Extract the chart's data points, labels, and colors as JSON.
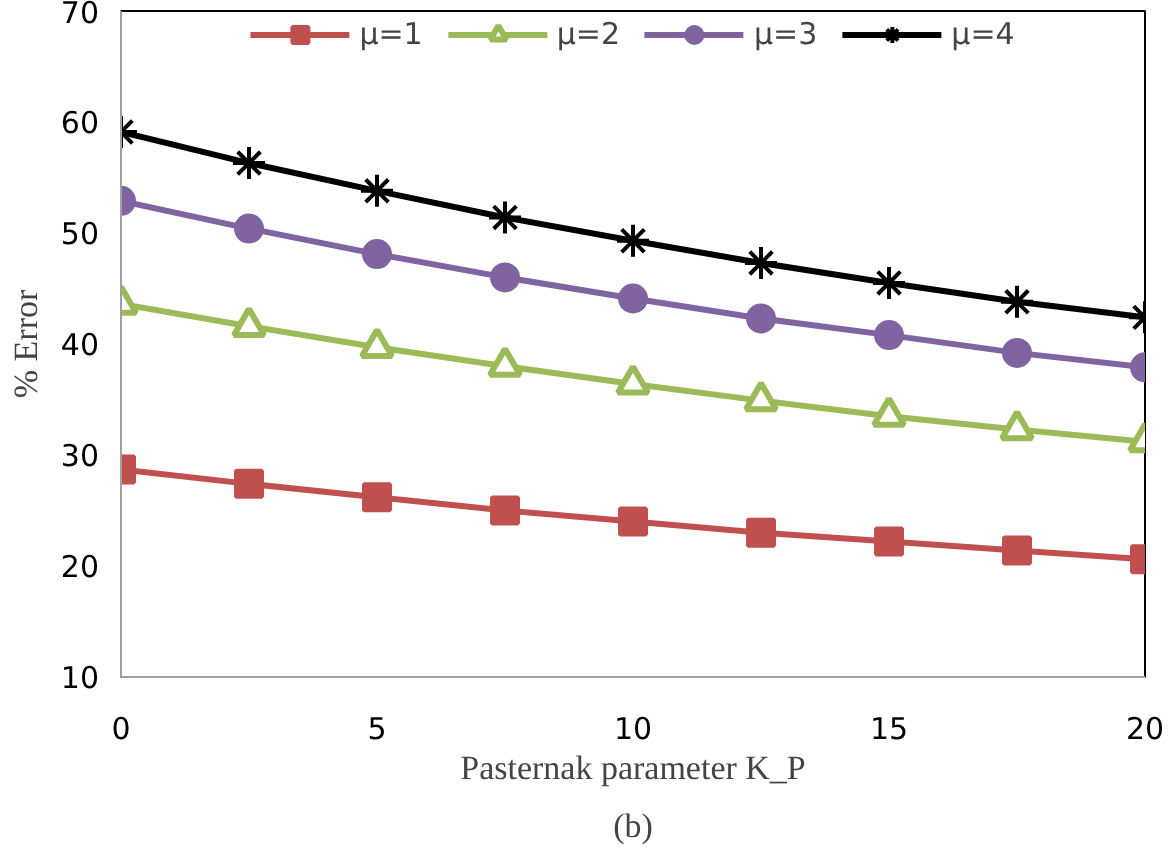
{
  "chart_data": {
    "type": "line",
    "xlabel": "Pasternak parameter K_P",
    "ylabel": "% Error",
    "annotations": [
      "(b)"
    ],
    "x": [
      0,
      2.5,
      5,
      7.5,
      10,
      12.5,
      15,
      17.5,
      20
    ],
    "series": [
      {
        "name": "μ=1",
        "color": "#c0504d",
        "marker": "square",
        "values": [
          28.7,
          27.4,
          26.2,
          25.0,
          24.0,
          23.0,
          22.2,
          21.4,
          20.6
        ]
      },
      {
        "name": "μ=2",
        "color": "#9bbb59",
        "marker": "triangle",
        "values": [
          43.6,
          41.6,
          39.7,
          38.0,
          36.4,
          34.9,
          33.5,
          32.3,
          31.2
        ]
      },
      {
        "name": "μ=3",
        "color": "#8064a2",
        "marker": "circle",
        "values": [
          52.9,
          50.4,
          48.1,
          46.0,
          44.1,
          42.3,
          40.8,
          39.2,
          37.9
        ]
      },
      {
        "name": "μ=4",
        "color": "#000000",
        "marker": "cross",
        "values": [
          59.1,
          56.3,
          53.8,
          51.4,
          49.3,
          47.3,
          45.5,
          43.8,
          42.4
        ]
      }
    ],
    "xlim": [
      0,
      20
    ],
    "xticks": [
      0,
      5,
      10,
      15,
      20
    ],
    "ylim": [
      10,
      70
    ],
    "yticks": [
      10,
      20,
      30,
      40,
      50,
      60,
      70
    ],
    "grid": false,
    "legend": "top",
    "line_style": "solid"
  }
}
